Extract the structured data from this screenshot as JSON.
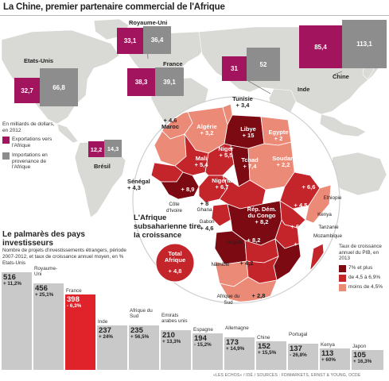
{
  "title": "La Chine, premier partenaire commercial de l'Afrique",
  "unit_note": "En milliards de dollars, en 2012",
  "trade_legend": {
    "export_label": "Exportations vers l'Afrique",
    "import_label": "Importations en provenance de l'Afrique",
    "export_color": "#a3145e",
    "import_color": "#8d8d8d"
  },
  "trade_partners": [
    {
      "name": "Etats-Unis",
      "exports": "32,7",
      "imports": "66,8"
    },
    {
      "name": "Royaume-Uni",
      "exports": "33,1",
      "imports": "36,4"
    },
    {
      "name": "France",
      "exports": "38,3",
      "imports": "39,1"
    },
    {
      "name": "Inde",
      "exports": "31",
      "imports": "52"
    },
    {
      "name": "Chine",
      "exports": "85,4",
      "imports": "113,1"
    },
    {
      "name": "Brésil",
      "exports": "12,2",
      "imports": "14,3"
    }
  ],
  "africa": {
    "headline": "L'Afrique subsaharienne tire la croissance",
    "countries": [
      {
        "name": "Tunisie",
        "growth": "+ 3,4"
      },
      {
        "name": "Maroc",
        "growth": "+ 4,6"
      },
      {
        "name": "Algérie",
        "growth": "+ 3,2"
      },
      {
        "name": "Libye",
        "growth": "+ 15"
      },
      {
        "name": "Egypte",
        "growth": "+ 2"
      },
      {
        "name": "Mali",
        "growth": "+ 5,4"
      },
      {
        "name": "Niger",
        "growth": "+ 5,5"
      },
      {
        "name": "Tchad",
        "growth": "+ 7,4"
      },
      {
        "name": "Soudan",
        "growth": "+ 2,2"
      },
      {
        "name": "Sénégal",
        "growth": "+ 4,3"
      },
      {
        "name": "Côte d'Ivoire",
        "growth": "+ 8,9"
      },
      {
        "name": "Ghana",
        "growth": "+ 8"
      },
      {
        "name": "Nigeria",
        "growth": "+ 6,7"
      },
      {
        "name": "Ethiopie",
        "growth": "+ 6,6"
      },
      {
        "name": "Gabon",
        "growth": "+ 4,6"
      },
      {
        "name": "Rép. Dém. du Congo",
        "growth": "+ 8,2"
      },
      {
        "name": "Kenya",
        "growth": "+ 4,5"
      },
      {
        "name": "Tanzanie",
        "growth": "+ 6,9"
      },
      {
        "name": "Angola",
        "growth": "+ 8,2"
      },
      {
        "name": "Mozambique",
        "growth": "+ 8,5"
      },
      {
        "name": "Namibie",
        "growth": "+ 4,2"
      },
      {
        "name": "Afrique du Sud",
        "growth": "+ 2,8"
      },
      {
        "name": "Total Afrique",
        "growth": "+ 4,8"
      }
    ]
  },
  "growth_legend": {
    "title": "Taux de croissance annuel du PIB, en 2013",
    "items": [
      {
        "label": "7% et plus",
        "color": "#7c0a13"
      },
      {
        "label": "de 4,5 à 6,9%",
        "color": "#c4252b"
      },
      {
        "label": "moins de 4,5%",
        "color": "#ec8a78"
      }
    ]
  },
  "palmares": {
    "title": "Le palmarès des pays investisseurs",
    "subtitle": "Nombre de projets d'investissements étrangers, période 2007-2012, et taux de croissance annuel moyen, en %",
    "items": [
      {
        "name": "Etats-Unis",
        "projects": "516",
        "growth": "+ 11,2%"
      },
      {
        "name": "Royaume-Uni",
        "projects": "456",
        "growth": "+ 25,1%"
      },
      {
        "name": "France",
        "projects": "398",
        "growth": "- 6,3%"
      },
      {
        "name": "Inde",
        "projects": "237",
        "growth": "+ 24%"
      },
      {
        "name": "Afrique du Sud",
        "projects": "235",
        "growth": "+ 56,5%"
      },
      {
        "name": "Emirats arabes unis",
        "projects": "210",
        "growth": "+ 13,3%"
      },
      {
        "name": "Espagne",
        "projects": "194",
        "growth": "- 15,2%"
      },
      {
        "name": "Allemagne",
        "projects": "173",
        "growth": "+ 14,9%"
      },
      {
        "name": "Chine",
        "projects": "152",
        "growth": "+ 15,5%"
      },
      {
        "name": "Portugal",
        "projects": "137",
        "growth": "- 26,8%"
      },
      {
        "name": "Kenya",
        "projects": "113",
        "growth": "+ 60%"
      },
      {
        "name": "Japon",
        "projects": "105",
        "growth": "+ 16,3%"
      }
    ]
  },
  "source": "«LES ECHOS» / IDÉ / SOURCES : FDIMARKETS, ERNST & YOUNG, OCDE"
}
